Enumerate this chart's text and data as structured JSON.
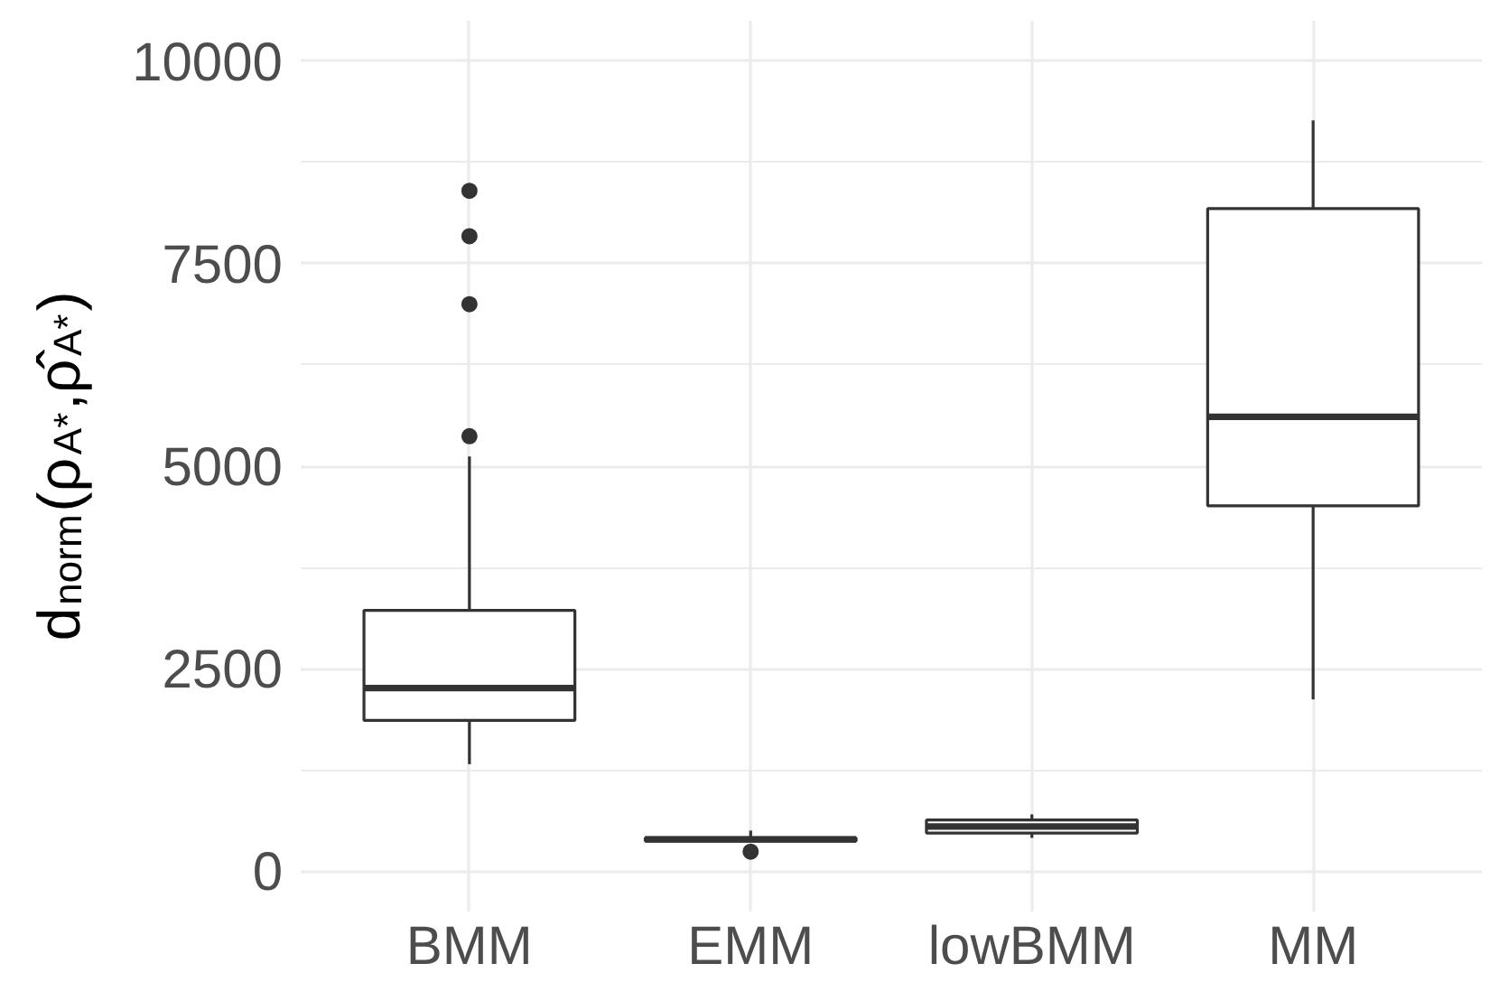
{
  "chart_data": {
    "type": "box",
    "ylabel": "d$_{norm}$(ρ$_{A*}$,ρ̂$_{A*}$)",
    "categories": [
      "BMM",
      "EMM",
      "lowBMM",
      "MM"
    ],
    "boxes": [
      {
        "low": 1320,
        "q1": 1860,
        "median": 2260,
        "q3": 3220,
        "high": 5120,
        "outliers": [
          5370,
          7000,
          7840,
          8400
        ]
      },
      {
        "low": 360,
        "q1": 370,
        "median": 390,
        "q3": 410,
        "high": 500,
        "outliers": [
          240
        ]
      },
      {
        "low": 410,
        "q1": 470,
        "median": 550,
        "q3": 630,
        "high": 700
      },
      {
        "low": 2120,
        "q1": 4510,
        "median": 5610,
        "q3": 8180,
        "high": 9270
      }
    ],
    "ylim": [
      -500,
      10500
    ],
    "yticks": [
      0,
      {
        "value": 1250,
        "label": null
      },
      2500,
      {
        "value": 3750,
        "label": null
      },
      5000,
      {
        "value": 6250,
        "label": null
      },
      7500,
      {
        "value": 8750,
        "label": null
      },
      10000
    ],
    "grid": true,
    "color": "#333333"
  }
}
